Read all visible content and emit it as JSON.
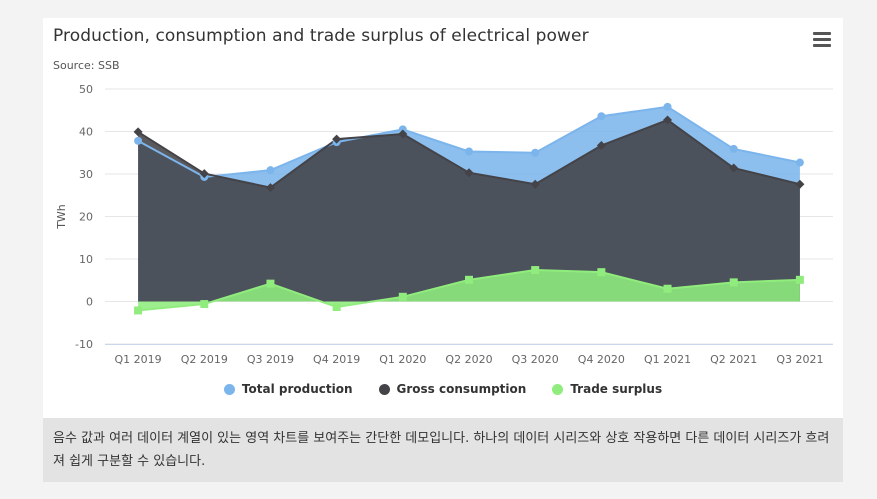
{
  "title": "Production, consumption and trade surplus of electrical power",
  "source": "Source: SSB",
  "menu_icon": "hamburger-menu-icon",
  "caption": "음수 값과 여러 데이터 계열이 있는 영역 차트를 보여주는 간단한 데모입니다. 하나의 데이터 시리즈와 상호 작용하면 다른 데이터 시리즈가 흐려져 쉽게 구분할 수 있습니다.",
  "chart_data": {
    "type": "area",
    "title": "Production, consumption and trade surplus of electrical power",
    "subtitle": "Source: SSB",
    "ylabel": "TWh",
    "xlabel": "",
    "ylim": [
      -10,
      50
    ],
    "yticks": [
      50,
      40,
      30,
      20,
      10,
      0,
      -10
    ],
    "grid": true,
    "legend_position": "bottom-center",
    "categories": [
      "Q1 2019",
      "Q2 2019",
      "Q3 2019",
      "Q4 2019",
      "Q1 2020",
      "Q2 2020",
      "Q3 2020",
      "Q4 2020",
      "Q1 2021",
      "Q2 2021",
      "Q3 2021"
    ],
    "series": [
      {
        "name": "Total production",
        "color": "#7cb5ec",
        "marker": "circle",
        "values": [
          37.8,
          29.3,
          30.9,
          37.5,
          40.5,
          35.3,
          35.0,
          43.6,
          45.8,
          35.9,
          32.7
        ]
      },
      {
        "name": "Gross consumption",
        "color": "#434348",
        "marker": "diamond",
        "values": [
          39.9,
          30.1,
          26.8,
          38.2,
          39.4,
          30.3,
          27.6,
          36.7,
          42.7,
          31.4,
          27.6
        ]
      },
      {
        "name": "Trade surplus",
        "color": "#90ed7d",
        "marker": "square",
        "values": [
          -2.1,
          -0.6,
          4.2,
          -1.3,
          1.1,
          5.1,
          7.4,
          6.9,
          3.0,
          4.5,
          5.1
        ]
      }
    ]
  }
}
